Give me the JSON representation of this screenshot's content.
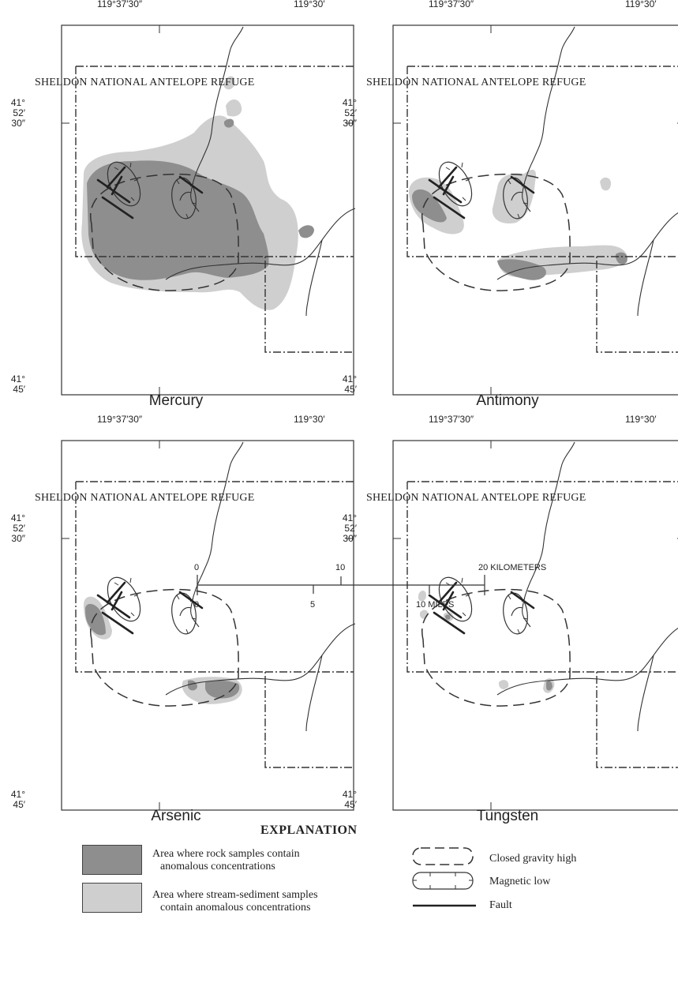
{
  "figure": {
    "longitudes": [
      "119°37′30″",
      "119°30′"
    ],
    "latitudes": {
      "north": [
        "41°",
        "52′",
        "30″"
      ],
      "south": [
        "41°",
        "45′"
      ]
    },
    "refuge_label": "SHELDON  NATIONAL  ANTELOPE  REFUGE",
    "panels": [
      {
        "title": "Mercury"
      },
      {
        "title": "Antimony"
      },
      {
        "title": "Arsenic"
      },
      {
        "title": "Tungsten"
      }
    ]
  },
  "scale": {
    "km_ticks": [
      "0",
      "10",
      "20 KILOMETERS"
    ],
    "mile_ticks": [
      "0",
      "5",
      "10 MILES"
    ]
  },
  "explanation": {
    "title": "EXPLANATION",
    "rock_samples": [
      "Area where rock samples contain",
      "anomalous concentrations"
    ],
    "stream_samples": [
      "Area where stream-sediment samples",
      "contain anomalous concentrations"
    ],
    "gravity_high": "Closed gravity high",
    "magnetic_low": "Magnetic low",
    "fault": "Fault"
  },
  "colors": {
    "rock_anomaly": "#8e8e8e",
    "stream_anomaly": "#cfcfcf",
    "line": "#222222"
  }
}
